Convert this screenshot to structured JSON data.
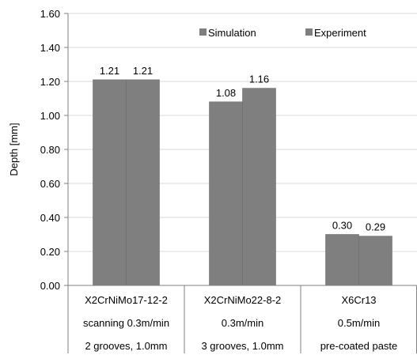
{
  "chart_data": {
    "type": "bar",
    "categories": [
      [
        "X2CrNiMo17-12-2",
        "scanning 0.3m/min",
        "2 grooves, 1.0mm"
      ],
      [
        "X2CrNiMo22-8-2",
        "0.3m/min",
        "3 grooves, 1.0mm"
      ],
      [
        "X6Cr13",
        "0.5m/min",
        "pre-coated paste"
      ]
    ],
    "series": [
      {
        "name": "Simulation",
        "values": [
          1.21,
          1.08,
          0.3
        ],
        "labels": [
          "1.21",
          "1.08",
          "0.30"
        ],
        "color": "#7f7f7f"
      },
      {
        "name": "Experiment",
        "values": [
          1.21,
          1.16,
          0.29
        ],
        "labels": [
          "1.21",
          "1.16",
          "0.29"
        ],
        "color": "#7f7f7f"
      }
    ],
    "title": "",
    "xlabel": "",
    "ylabel": "Depth [mm]",
    "ylim": [
      0,
      1.6
    ],
    "yticks": [
      "0.00",
      "0.20",
      "0.40",
      "0.60",
      "0.80",
      "1.00",
      "1.20",
      "1.40",
      "1.60"
    ],
    "grid": true,
    "legend": "top-right",
    "colors": {
      "bar": "#7f7f7f",
      "grid": "#d9d9d9",
      "axis": "#7f7f7f"
    }
  }
}
